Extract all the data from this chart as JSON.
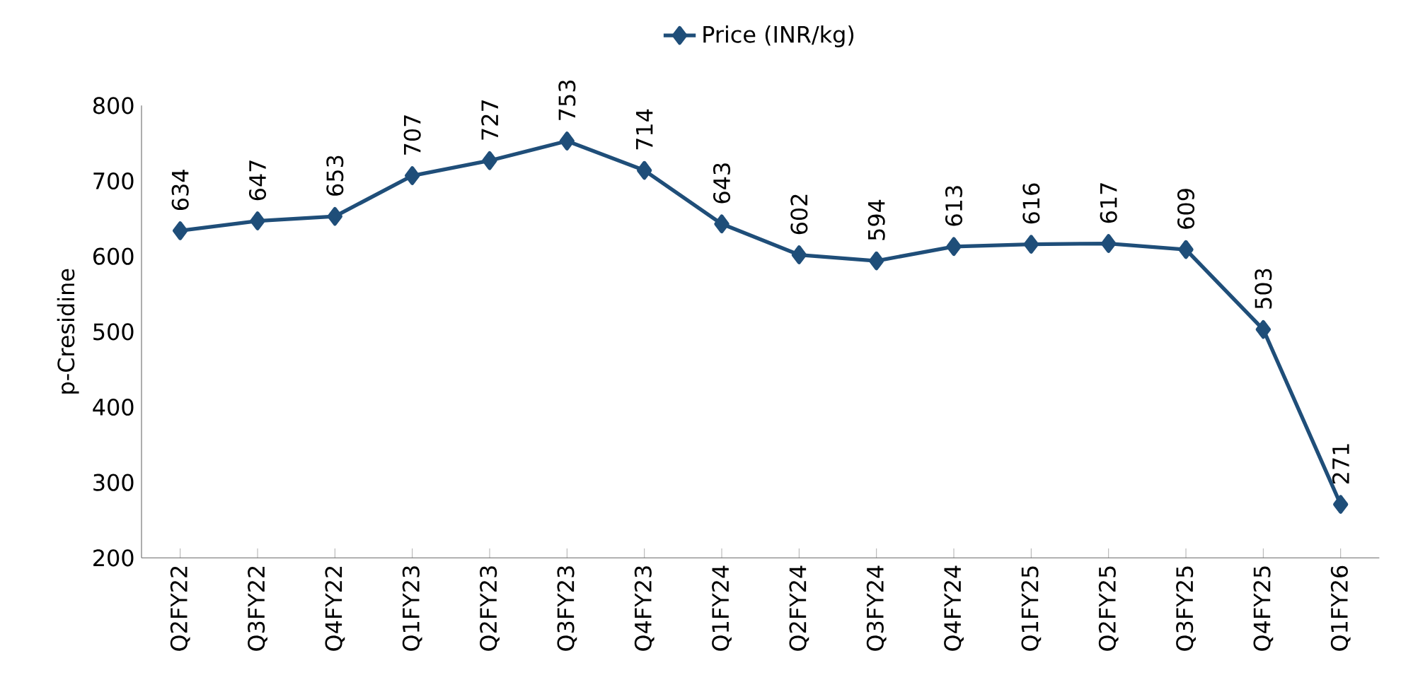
{
  "chart_data": {
    "type": "line",
    "ylabel": "p-Cresidine",
    "categories": [
      "Q2FY22",
      "Q3FY22",
      "Q4FY22",
      "Q1FY23",
      "Q2FY23",
      "Q3FY23",
      "Q4FY23",
      "Q1FY24",
      "Q2FY24",
      "Q3FY24",
      "Q4FY24",
      "Q1FY25",
      "Q2FY25",
      "Q3FY25",
      "Q4FY25",
      "Q1FY26"
    ],
    "series": [
      {
        "name": "Price (INR/kg)",
        "color": "#1f4e79",
        "values": [
          634,
          647,
          653,
          707,
          727,
          753,
          714,
          643,
          602,
          594,
          613,
          616,
          617,
          609,
          503,
          271
        ]
      }
    ],
    "ylim": [
      200,
      800
    ],
    "yticks": [
      200,
      300,
      400,
      500,
      600,
      700,
      800
    ],
    "data_labels": true,
    "legend": "top",
    "marker": "diamond",
    "line_style": "solid"
  }
}
